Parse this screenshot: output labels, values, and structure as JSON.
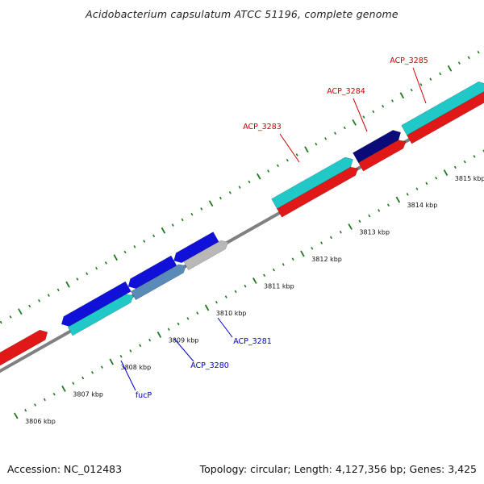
{
  "title": "Acidobacterium capsulatum ATCC 51196, complete genome",
  "footer": {
    "accession": "Accession: NC_012483",
    "summary": "Topology: circular; Length: 4,127,356 bp; Genes: 3,425"
  },
  "colors": {
    "forward_red": "#e01818",
    "reverse_blue": "#1010d8",
    "cyan": "#20c8c8",
    "navy": "#0a0a78",
    "grey": "#b8b8b8",
    "steel": "#5a8ab8",
    "tick_green": "#207820",
    "backbone": "#808080",
    "label_red": "#cc0000",
    "label_blue": "#0000cc"
  },
  "kbp_labels": [
    "3806 kbp",
    "3807 kbp",
    "3808 kbp",
    "3809 kbp",
    "3810 kbp",
    "3811 kbp",
    "3812 kbp",
    "3813 kbp",
    "3814 kbp",
    "3815 kbp"
  ],
  "gene_labels": [
    {
      "text": "ACP_3283",
      "color": "red"
    },
    {
      "text": "ACP_3284",
      "color": "red"
    },
    {
      "text": "ACP_3285",
      "color": "red"
    },
    {
      "text": "fucP",
      "color": "blue"
    },
    {
      "text": "ACP_3280",
      "color": "blue"
    },
    {
      "text": "ACP_3281",
      "color": "blue"
    }
  ]
}
